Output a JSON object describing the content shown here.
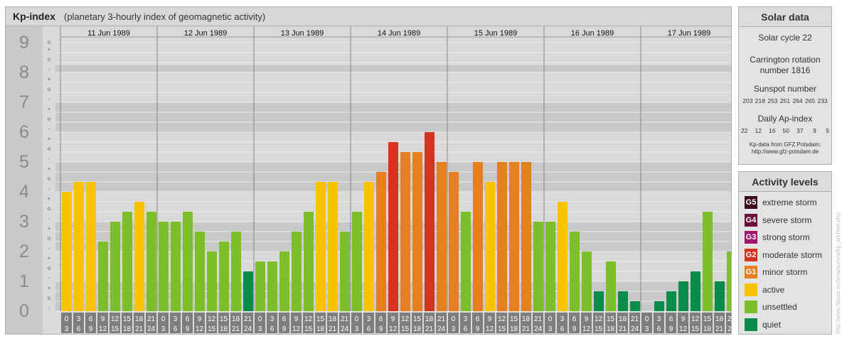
{
  "title": {
    "main": "Kp-index",
    "sub": "(planetary 3-hourly index of geomagnetic activity)"
  },
  "chart_data": {
    "type": "bar",
    "ylim": [
      0,
      9
    ],
    "y_ticks": [
      "0",
      "1",
      "2",
      "3",
      "4",
      "5",
      "6",
      "7",
      "8",
      "9"
    ],
    "sub_ticks": [
      "-",
      "o",
      "+"
    ],
    "days": [
      "11 Jun 1989",
      "12 Jun 1989",
      "13 Jun 1989",
      "14 Jun 1989",
      "15 Jun 1989",
      "16 Jun 1989",
      "17 Jun 1989"
    ],
    "slot_labels": [
      [
        "0",
        "3"
      ],
      [
        "3",
        "6"
      ],
      [
        "6",
        "9"
      ],
      [
        "9",
        "12"
      ],
      [
        "12",
        "15"
      ],
      [
        "15",
        "18"
      ],
      [
        "18",
        "21"
      ],
      [
        "21",
        "24"
      ]
    ],
    "values": [
      4.0,
      4.333,
      4.333,
      2.333,
      3.0,
      3.333,
      3.667,
      3.333,
      3.0,
      3.0,
      3.333,
      2.667,
      2.0,
      2.333,
      2.667,
      1.333,
      1.667,
      1.667,
      2.0,
      2.667,
      3.333,
      4.333,
      4.333,
      2.667,
      3.333,
      4.333,
      4.667,
      5.667,
      5.333,
      5.333,
      6.0,
      5.0,
      4.667,
      3.333,
      5.0,
      4.333,
      5.0,
      5.0,
      5.0,
      3.0,
      3.0,
      3.667,
      2.667,
      2.0,
      0.667,
      1.667,
      0.667,
      0.333,
      0.0,
      0.333,
      0.667,
      1.0,
      1.333,
      3.333,
      1.0,
      2.0
    ],
    "bar_colors": {
      "quiet": "#0a8c4a",
      "unsettled": "#7cbf2a",
      "active": "#f8c300",
      "minor": "#e57f20",
      "moderate": "#d63220"
    }
  },
  "solar": {
    "title": "Solar data",
    "cycle": "Solar cycle 22",
    "carrington_1": "Carrington rotation",
    "carrington_2": "number 1816",
    "sunspot_title": "Sunspot number",
    "sunspot_values": "203 218 253 251 264 265 233",
    "ap_title": "Daily Ap-index",
    "ap_values": "22   12   16   50   37    9    5",
    "credit_1": "Kp-data from GFZ Potsdam:",
    "credit_2": "http://www.gfz-potsdam.de"
  },
  "activity": {
    "title": "Activity levels",
    "items": [
      {
        "code": "G5",
        "label": "extreme storm",
        "color": "#3b0a1e"
      },
      {
        "code": "G4",
        "label": "severe storm",
        "color": "#6b0f3a"
      },
      {
        "code": "G3",
        "label": "strong storm",
        "color": "#a3156b"
      },
      {
        "code": "G2",
        "label": "moderate storm",
        "color": "#d63220"
      },
      {
        "code": "G1",
        "label": "minor storm",
        "color": "#e57f20"
      },
      {
        "code": "",
        "label": "active",
        "color": "#f8c300"
      },
      {
        "code": "",
        "label": "unsettled",
        "color": "#7cbf2a"
      },
      {
        "code": "",
        "label": "quiet",
        "color": "#0a8c4a"
      }
    ]
  },
  "side_credit": "http://www.fleuse.eu/lena/aurora/kp_archive.php"
}
